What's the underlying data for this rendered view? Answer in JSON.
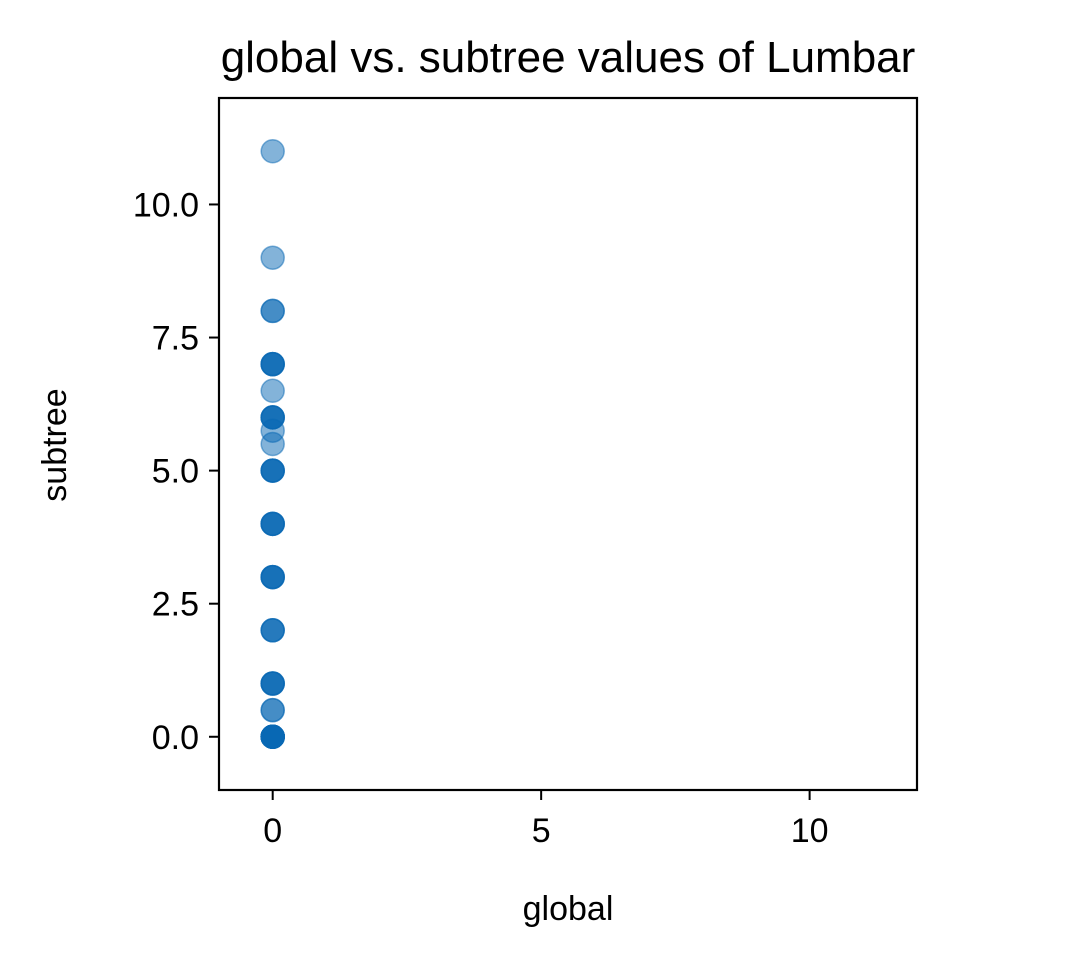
{
  "chart_data": {
    "type": "scatter",
    "title": "global vs. subtree values of Lumbar",
    "xlabel": "global",
    "ylabel": "subtree",
    "xlim": [
      -1,
      12
    ],
    "ylim": [
      -1,
      12
    ],
    "x_ticks": [
      0,
      5,
      10
    ],
    "x_tick_labels": [
      "0",
      "5",
      "10"
    ],
    "y_ticks": [
      0,
      2.5,
      5,
      7.5,
      10
    ],
    "y_tick_labels": [
      "0.0",
      "2.5",
      "5.0",
      "7.5",
      "10.0"
    ],
    "grid": false,
    "point_color": "#0868b4",
    "point_alpha": 0.5,
    "x": [
      0,
      0,
      0,
      0,
      0,
      0,
      0,
      0,
      0,
      0,
      0,
      0,
      0,
      0,
      0,
      0,
      0,
      0,
      0,
      0,
      0,
      0,
      0,
      0,
      0,
      0,
      0,
      0,
      0,
      0,
      0,
      0,
      0,
      0,
      0,
      0,
      0,
      0,
      0,
      0,
      0,
      0,
      0,
      0,
      0,
      0
    ],
    "y": [
      11,
      9,
      8,
      8,
      7,
      7,
      7,
      7,
      6.5,
      6,
      6,
      6,
      6,
      5.75,
      5.5,
      5,
      5,
      5,
      5,
      4,
      4,
      4,
      4,
      3,
      3,
      3,
      3,
      2,
      2,
      2,
      1,
      1,
      1,
      1,
      0.5,
      0.5,
      0,
      0,
      0,
      0,
      0,
      0,
      0,
      0,
      0,
      0
    ]
  }
}
